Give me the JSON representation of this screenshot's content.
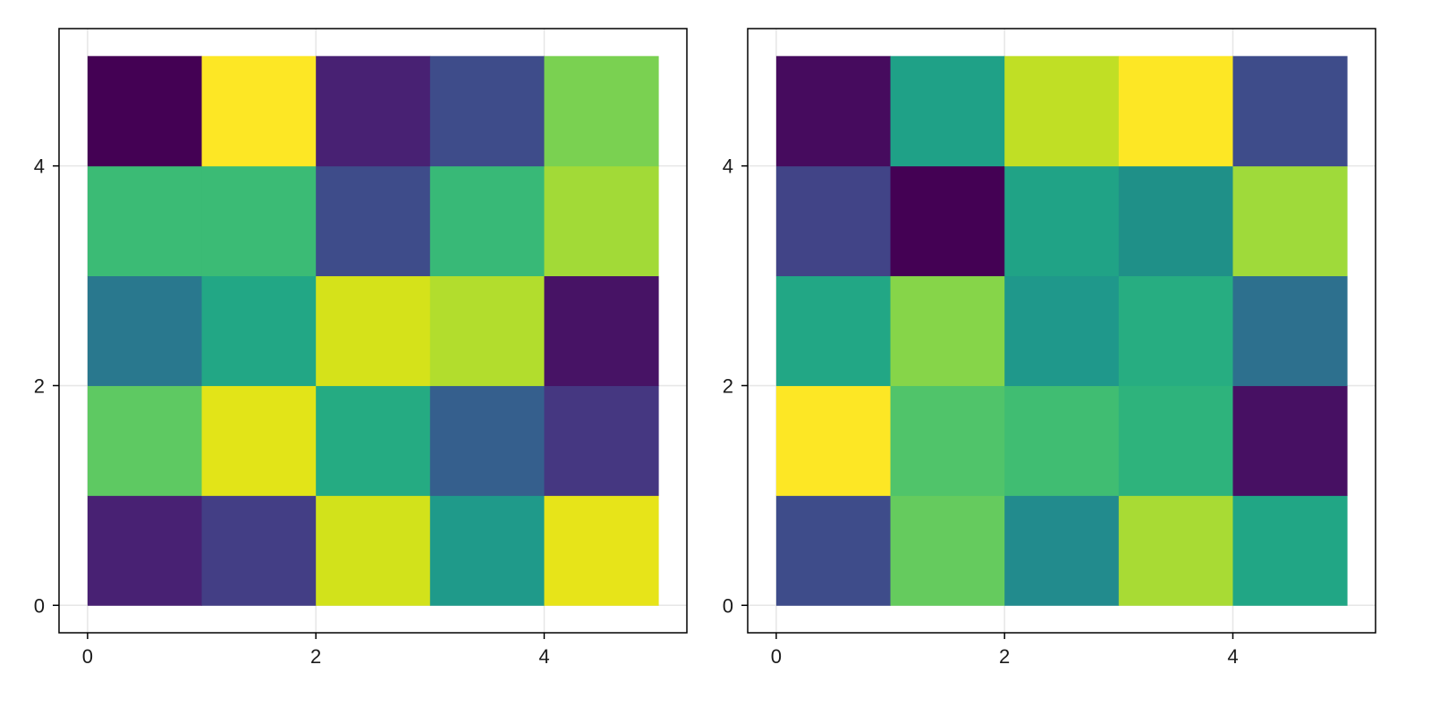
{
  "chart_data": [
    {
      "type": "heatmap",
      "title": "",
      "xlabel": "",
      "ylabel": "",
      "xlim": [
        -0.25,
        5.25
      ],
      "ylim": [
        -0.25,
        5.25
      ],
      "x_ticks": [
        "0",
        "2",
        "4"
      ],
      "y_ticks": [
        "0",
        "2",
        "4"
      ],
      "grid": true,
      "colormap": "viridis",
      "rows_bottom_to_top": [
        [
          "#482173",
          "#433e85",
          "#d2e21b",
          "#1f9a8a",
          "#e7e419"
        ],
        [
          "#5ec962",
          "#e2e418",
          "#25ab82",
          "#355f8d",
          "#453781"
        ],
        [
          "#29788e",
          "#22a785",
          "#d5e21a",
          "#b2dd2d",
          "#471365"
        ],
        [
          "#3bbb75",
          "#3bbb75",
          "#3e4c8a",
          "#38b977",
          "#a2da37"
        ],
        [
          "#440154",
          "#fde725",
          "#482173",
          "#3e4c8a",
          "#7ad151"
        ]
      ]
    },
    {
      "type": "heatmap",
      "title": "",
      "xlabel": "",
      "ylabel": "",
      "xlim": [
        -0.25,
        5.25
      ],
      "ylim": [
        -0.25,
        5.25
      ],
      "x_ticks": [
        "0",
        "2",
        "4"
      ],
      "y_ticks": [
        "0",
        "2",
        "4"
      ],
      "grid": true,
      "colormap": "viridis",
      "rows_bottom_to_top": [
        [
          "#3e4c8a",
          "#65cb5e",
          "#228b8d",
          "#a8db34",
          "#21a685"
        ],
        [
          "#fde725",
          "#50c46a",
          "#40bd72",
          "#2eb37c",
          "#471063"
        ],
        [
          "#22a785",
          "#86d549",
          "#1f988b",
          "#27ad81",
          "#2d708e"
        ],
        [
          "#414487",
          "#440154",
          "#20a386",
          "#1f9088",
          "#9fda3a"
        ],
        [
          "#460b5e",
          "#1fa187",
          "#c0df25",
          "#fde725",
          "#3e4c8a"
        ]
      ]
    }
  ]
}
